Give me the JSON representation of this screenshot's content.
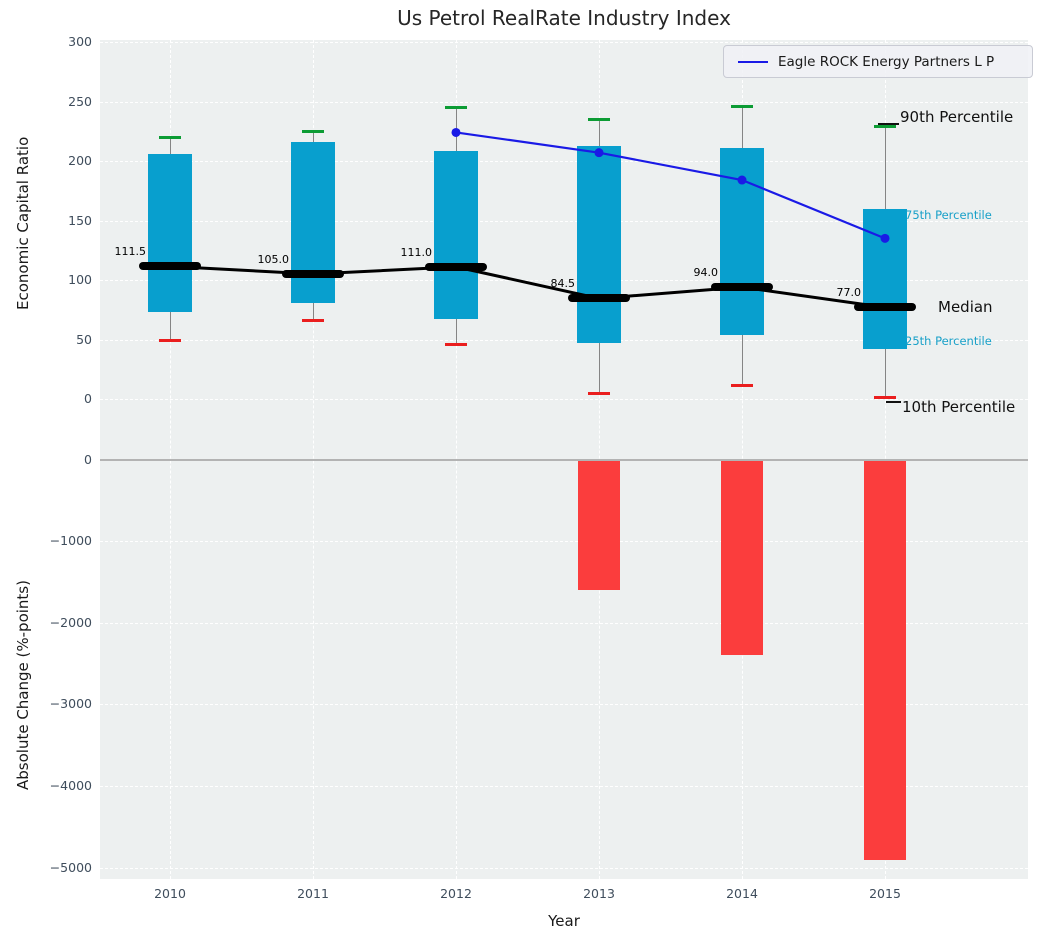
{
  "title": "Us Petrol RealRate Industry Index",
  "xlabel": "Year",
  "colors": {
    "background_panel": "#edf0f0",
    "box_fill": "#089fce",
    "bar_negative": "#fb3d3d",
    "company_line": "#1a1ae6",
    "cap_90th": "#0c9c34",
    "cap_10th": "#ea1e1e",
    "median": "#000000",
    "tick_text": "#3f4d5c",
    "percentile_label_small": "#18a0c8",
    "zero_line": "#b3b3b3"
  },
  "legend": {
    "label": "Eagle ROCK Energy Partners L P",
    "position": "upper right"
  },
  "chart_data": [
    {
      "type": "box",
      "title": "Us Petrol RealRate Industry Index",
      "ylabel": "Economic Capital Ratio",
      "ylim": [
        -28,
        303
      ],
      "yticks": [
        0,
        50,
        100,
        150,
        200,
        250,
        300
      ],
      "grid": true,
      "categories": [
        "2010",
        "2011",
        "2012",
        "2013",
        "2014",
        "2015"
      ],
      "series": [
        {
          "name": "90th Percentile",
          "values": [
            220,
            225,
            245,
            235,
            246,
            229
          ]
        },
        {
          "name": "75th Percentile",
          "values": [
            206,
            216,
            208,
            213,
            211,
            160
          ]
        },
        {
          "name": "Median",
          "values": [
            111.5,
            105.0,
            111.0,
            84.5,
            94.0,
            77.0
          ]
        },
        {
          "name": "25th Percentile",
          "values": [
            73,
            81,
            67,
            47,
            54,
            42
          ]
        },
        {
          "name": "10th Percentile",
          "values": [
            49,
            66,
            46,
            5,
            11,
            1
          ]
        },
        {
          "name": "Eagle ROCK Energy Partners L P",
          "x": [
            "2012",
            "2013",
            "2014",
            "2015"
          ],
          "values": [
            224,
            207,
            184,
            135
          ]
        }
      ],
      "median_labels": [
        "111.5",
        "105.0",
        "111.0",
        "84.5",
        "94.0",
        "77.0"
      ],
      "annotations": {
        "p90": "90th Percentile",
        "p75": "75th Percentile",
        "median": "Median",
        "p25": "25th Percentile",
        "p10": "10th Percentile"
      }
    },
    {
      "type": "bar",
      "ylabel": "Absolute Change (%-points)",
      "xlabel": "Year",
      "ylim": [
        350,
        -5150
      ],
      "yticks": [
        0,
        -1000,
        -2000,
        -3000,
        -4000,
        -5000
      ],
      "grid": true,
      "categories": [
        "2010",
        "2011",
        "2012",
        "2013",
        "2014",
        "2015"
      ],
      "values": [
        null,
        null,
        null,
        -1600,
        -2400,
        -4900
      ]
    }
  ]
}
